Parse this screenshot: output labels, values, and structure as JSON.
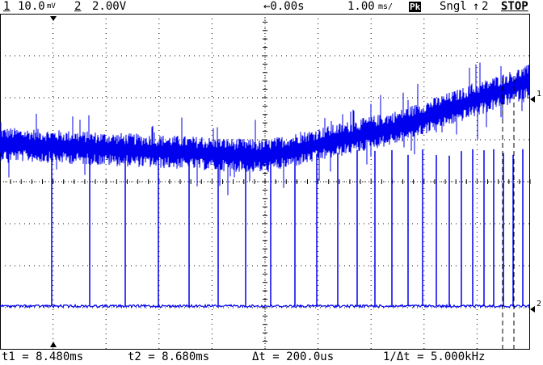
{
  "header": {
    "ch1_num": "1",
    "ch1_scale": "10.0",
    "ch1_scale_unit": "mV",
    "ch2_num": "2",
    "ch2_scale": "2.00V",
    "delay": "←0.00s",
    "timebase": "1.00",
    "timebase_unit": "ms/",
    "acq_mode": "Pk",
    "run_mode": "Sngl",
    "trig_source": "2",
    "status": "STOP"
  },
  "markers": {
    "ch1": "1",
    "ch2": "2"
  },
  "footer": {
    "t1": "t1 = 8.480ms",
    "t2": "t2 = 8.680ms",
    "delta_t": "Δt = 200.0us",
    "inv_delta_t": "1/Δt = 5.000kHz"
  },
  "colors": {
    "trace": "#0000ee",
    "grid": "#000000",
    "background": "#ffffff"
  },
  "chart_data": {
    "type": "line",
    "grid": "10x8 dotted",
    "series": [
      {
        "channel": "1",
        "shape": "noisy rising ramp",
        "level_div": [
          [
            0,
            3.1
          ],
          [
            5,
            3.4
          ],
          [
            7.5,
            2.7
          ],
          [
            10,
            1.6
          ]
        ]
      },
      {
        "channel": "2",
        "shape": "pulse train",
        "pulse_count": 28
      }
    ],
    "cursors": {
      "t1": "8.480ms",
      "t2": "8.680ms"
    }
  }
}
